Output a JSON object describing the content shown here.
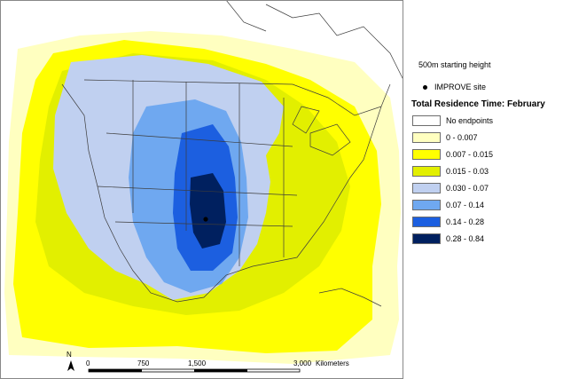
{
  "starting_height": "500m starting height",
  "site_label": "IMPROVE site",
  "legend": {
    "title": "Total Residence Time: February",
    "classes": [
      {
        "label": "No endpoints",
        "color": "#ffffff"
      },
      {
        "label": "0 - 0.007",
        "color": "#ffffc0"
      },
      {
        "label": "0.007 - 0.015",
        "color": "#ffff00"
      },
      {
        "label": "0.015 - 0.03",
        "color": "#e2ef00"
      },
      {
        "label": "0.030 - 0.07",
        "color": "#c0d0f0"
      },
      {
        "label": "0.07 - 0.14",
        "color": "#6fa8f0"
      },
      {
        "label": "0.14 - 0.28",
        "color": "#1c5fe0"
      },
      {
        "label": "0.28 - 0.84",
        "color": "#00205f"
      }
    ]
  },
  "scale_bar": {
    "ticks": [
      "0",
      "750",
      "1,500",
      "3,000"
    ],
    "unit": "Kilometers"
  },
  "north_arrow_label": "N"
}
